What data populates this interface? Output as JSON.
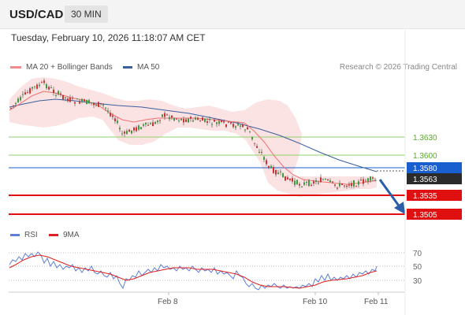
{
  "header": {
    "symbol": "USD/CAD",
    "timeframe": "30 MIN",
    "datetime": "Tuesday, February 10, 2026 11:18:07 AM CET",
    "copyright": "Research © 2026 Trading Central"
  },
  "legend": {
    "ma20": {
      "label": "MA 20 + Bollinger Bands",
      "color": "#f28c8c"
    },
    "ma50": {
      "label": "MA 50",
      "color": "#3a5f9f"
    },
    "rsi": {
      "label": "RSI",
      "color": "#5b7fd6"
    },
    "rsi_ma": {
      "label": "9MA",
      "color": "#e02020"
    }
  },
  "price_levels": [
    {
      "label": "1.3630",
      "type": "resistance",
      "color": "#6fbf3f"
    },
    {
      "label": "1.3600",
      "type": "resistance",
      "color": "#6fbf3f"
    },
    {
      "label": "1.3580",
      "type": "pivot",
      "color": "#1a5fd0"
    },
    {
      "label": "1.3563",
      "type": "last",
      "color": "#2b2b2b"
    },
    {
      "label": "1.3535",
      "type": "support",
      "color": "#e01010"
    },
    {
      "label": "1.3505",
      "type": "support",
      "color": "#e01010"
    }
  ],
  "rsi_ticks": [
    "70",
    "50",
    "30"
  ],
  "x_ticks": [
    "Feb 8",
    "Feb 10",
    "Feb 11"
  ]
}
